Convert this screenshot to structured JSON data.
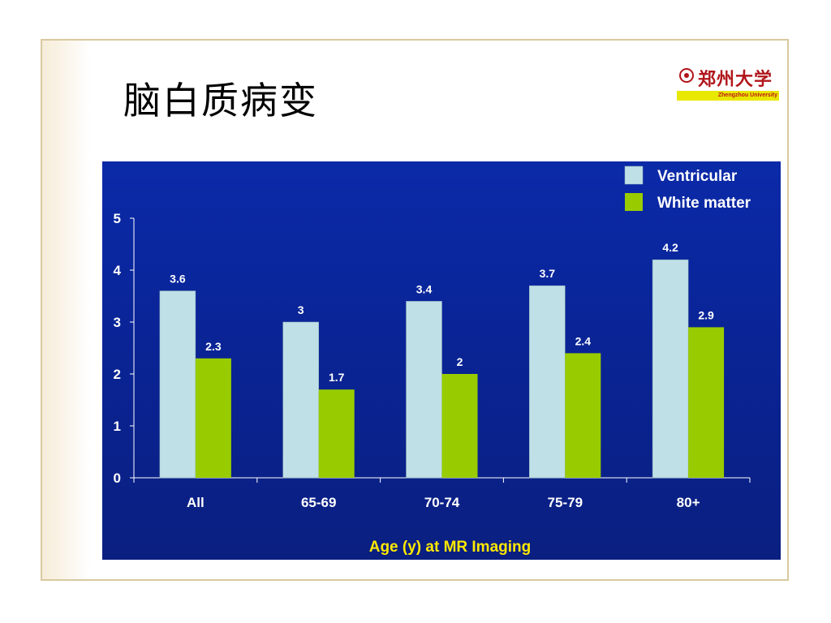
{
  "slide": {
    "title": "脑白质病变"
  },
  "logo": {
    "name_cn": "郑州大学",
    "name_en": "Zhengzhou University",
    "accent_color": "#b0161b",
    "bar_color": "#e8e800"
  },
  "chart_data": {
    "type": "bar",
    "categories": [
      "All",
      "65-69",
      "70-74",
      "75-79",
      "80+"
    ],
    "series": [
      {
        "name": "Ventricular",
        "values": [
          3.6,
          3,
          3.4,
          3.7,
          4.2
        ],
        "color": "#bfe0e6"
      },
      {
        "name": "White matter",
        "values": [
          2.3,
          1.7,
          2,
          2.4,
          2.9
        ],
        "color": "#99cc00"
      }
    ],
    "data_labels": [
      [
        "3.6",
        "3",
        "3.4",
        "3.7",
        "4.2"
      ],
      [
        "2.3",
        "1.7",
        "2",
        "2.4",
        "2.9"
      ]
    ],
    "yticks": [
      "0",
      "1",
      "2",
      "3",
      "4",
      "5"
    ],
    "ylim": [
      0,
      5
    ],
    "xlabel": "Age (y) at MR Imaging",
    "ylabel": "",
    "legend_position": "top-right",
    "background_color": "#0a2496",
    "grid": false
  }
}
